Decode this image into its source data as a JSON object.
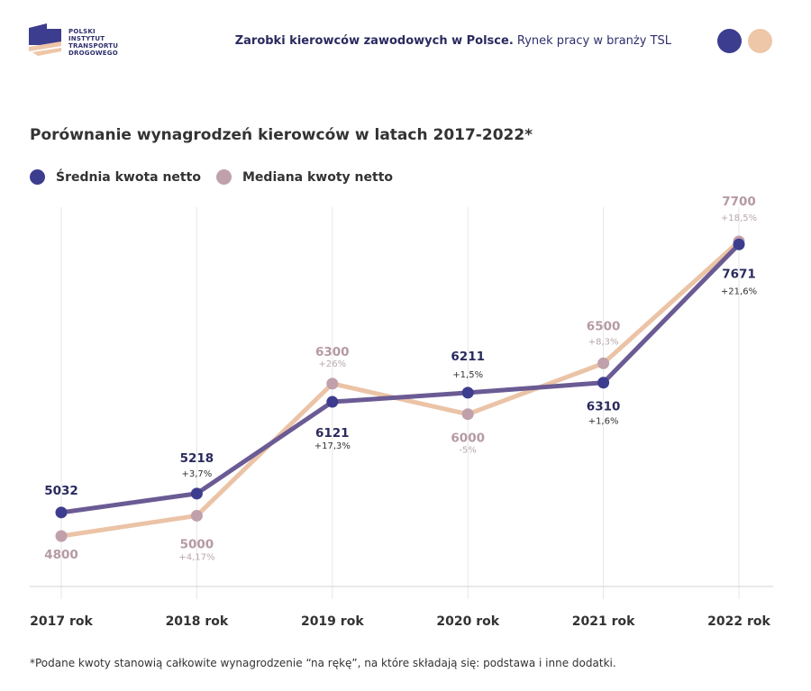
{
  "header": {
    "logo_lines": [
      "POLSKI",
      "INSTYTUT",
      "TRANSPORTU",
      "DROGOWEGO"
    ],
    "title_bold": "Zarobki kierowców zawodowych w Polsce.",
    "title_regular": " Rynek pracy w branży TSL",
    "dot_colors": [
      "#3d3d8f",
      "#eec6a8"
    ]
  },
  "colors": {
    "avg_line": "#6b5b94",
    "avg_dot": "#3d3d8f",
    "avg_label": "#2a2a5e",
    "median_line": "#ebc3a6",
    "median_dot": "#bfa0ab",
    "median_label": "#b59aa2",
    "grid": "#e6e6e6"
  },
  "chart_data": {
    "type": "line",
    "title": "Porównanie wynagrodzeń kierowców w latach 2017-2022*",
    "xlabel": "",
    "ylabel": "",
    "categories": [
      "2017 rok",
      "2018 rok",
      "2019 rok",
      "2020 rok",
      "2021 rok",
      "2022 rok"
    ],
    "legend_position": "top-left",
    "grid": "vertical",
    "ylim": [
      4800,
      7700
    ],
    "series": [
      {
        "name": "Średnia kwota netto",
        "values": [
          5032,
          5218,
          6121,
          6211,
          6310,
          7671
        ],
        "changes": [
          "",
          "+3,7%",
          "+17,3%",
          "+1,5%",
          "+1,6%",
          "+21,6%"
        ],
        "label_side": [
          "above",
          "above",
          "below",
          "above",
          "below",
          "below"
        ]
      },
      {
        "name": "Mediana kwoty netto",
        "values": [
          4800,
          5000,
          6300,
          6000,
          6500,
          7700
        ],
        "changes": [
          "",
          "+4,17%",
          "+26%",
          "-5%",
          "+8,3%",
          "+18,5%"
        ],
        "label_side": [
          "below",
          "below",
          "above",
          "below",
          "above",
          "above"
        ]
      }
    ]
  },
  "footnote": "*Podane kwoty stanowią całkowite wynagrodzenie “na rękę”, na które składają się: podstawa i inne dodatki."
}
